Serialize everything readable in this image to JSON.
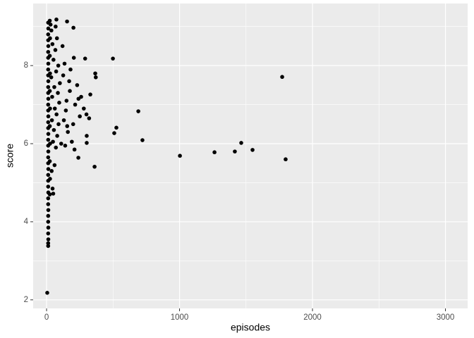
{
  "chart_data": {
    "type": "scatter",
    "x_label": "episodes",
    "y_label": "score",
    "xlim": [
      -101,
      3167
    ],
    "ylim": [
      1.78,
      9.59
    ],
    "xticks": [
      0,
      1000,
      2000,
      3000
    ],
    "yticks": [
      2,
      4,
      6,
      8
    ],
    "x_minor_breaks": [
      500,
      1500,
      2500
    ],
    "y_minor_breaks": [
      3,
      5,
      7,
      9
    ],
    "grid": true,
    "color": "#000000",
    "x": [
      12,
      12,
      13,
      12,
      13,
      12,
      12,
      13,
      12,
      12,
      24,
      13,
      12,
      12,
      26,
      12,
      13,
      12,
      24,
      12,
      13,
      12,
      26,
      12,
      13,
      12,
      24,
      12,
      13,
      12,
      26,
      12,
      13,
      12,
      24,
      12,
      13,
      12,
      26,
      12,
      13,
      12,
      24,
      12,
      13,
      12,
      26,
      12,
      13,
      12,
      24,
      50,
      45,
      38,
      60,
      70,
      48,
      80,
      55,
      90,
      40,
      75,
      62,
      95,
      42,
      85,
      58,
      100,
      35,
      72,
      88,
      52,
      66,
      44,
      78,
      36,
      68,
      74,
      30,
      110,
      130,
      150,
      170,
      120,
      140,
      160,
      180,
      200,
      215,
      230,
      250,
      260,
      280,
      205,
      190,
      175,
      145,
      125,
      135,
      155,
      210,
      240,
      300,
      320,
      290,
      302,
      302,
      239,
      154,
      202,
      329,
      361,
      366,
      370,
      499,
      509,
      525,
      690,
      721,
      1003,
      1263,
      1416,
      1464,
      1549,
      1772,
      1798,
      5
    ],
    "y": [
      3.38,
      3.45,
      3.55,
      3.7,
      3.85,
      4.0,
      4.15,
      4.3,
      4.45,
      4.6,
      4.7,
      4.75,
      4.9,
      5.05,
      5.1,
      5.2,
      5.35,
      5.5,
      5.55,
      5.65,
      5.8,
      5.95,
      6.0,
      6.1,
      6.25,
      6.4,
      6.45,
      6.55,
      6.7,
      6.85,
      6.9,
      7.0,
      7.15,
      7.3,
      7.35,
      7.45,
      7.6,
      7.75,
      7.8,
      7.9,
      8.05,
      8.2,
      8.25,
      8.35,
      8.5,
      8.65,
      8.7,
      8.8,
      8.95,
      9.1,
      9.15,
      4.72,
      4.85,
      5.3,
      5.45,
      5.9,
      6.05,
      6.2,
      6.35,
      6.5,
      6.6,
      6.75,
      6.9,
      7.05,
      7.2,
      7.3,
      7.45,
      7.55,
      7.7,
      7.85,
      8.0,
      8.15,
      8.4,
      8.55,
      8.7,
      8.9,
      9.0,
      9.18,
      9.05,
      6.0,
      6.6,
      7.1,
      7.6,
      8.5,
      5.95,
      6.3,
      7.9,
      6.5,
      7.0,
      7.5,
      6.7,
      7.2,
      6.9,
      8.2,
      6.05,
      7.35,
      6.85,
      7.75,
      8.05,
      6.45,
      5.85,
      7.15,
      6.75,
      6.65,
      8.18,
      6.2,
      6.02,
      5.64,
      9.13,
      8.97,
      7.26,
      5.41,
      7.8,
      7.7,
      8.18,
      6.27,
      6.41,
      6.83,
      6.09,
      5.69,
      5.78,
      5.8,
      6.02,
      5.84,
      7.71,
      5.6,
      2.18
    ]
  }
}
